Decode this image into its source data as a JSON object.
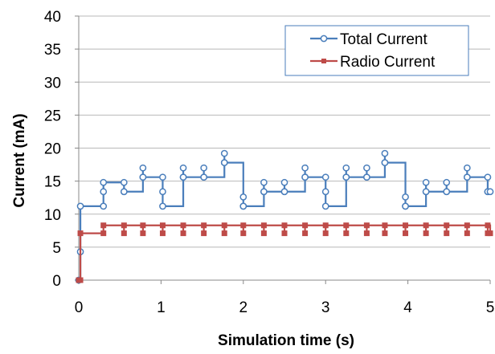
{
  "chart_data": {
    "type": "line",
    "title": "",
    "xlabel": "Simulation time (s)",
    "ylabel": "Current (mA)",
    "xlim": [
      0,
      5
    ],
    "ylim": [
      0,
      40
    ],
    "xticks": [
      0,
      1,
      2,
      3,
      4,
      5
    ],
    "yticks": [
      0,
      5,
      10,
      15,
      20,
      25,
      30,
      35,
      40
    ],
    "grid": "horizontal",
    "legend_position": "top-right",
    "step": true,
    "series": [
      {
        "name": "Total Current",
        "color": "#4a7ebb",
        "marker": "circle",
        "x": [
          0,
          0.02,
          0.02,
          0.3,
          0.3,
          0.3,
          0.55,
          0.55,
          0.55,
          0.78,
          0.78,
          0.78,
          1.02,
          1.02,
          1.02,
          1.27,
          1.27,
          1.27,
          1.52,
          1.52,
          1.52,
          1.77,
          1.77,
          1.77,
          2.0,
          2.0,
          2.0,
          2.25,
          2.25,
          2.25,
          2.5,
          2.5,
          2.5,
          2.75,
          2.75,
          2.75,
          3.0,
          3.0,
          3.0,
          3.25,
          3.25,
          3.25,
          3.5,
          3.5,
          3.5,
          3.72,
          3.72,
          3.72,
          3.97,
          3.97,
          3.97,
          4.22,
          4.22,
          4.22,
          4.47,
          4.47,
          4.47,
          4.72,
          4.72,
          4.72,
          4.97,
          4.97,
          4.97,
          5.0
        ],
        "y": [
          0,
          4.3,
          11.2,
          11.2,
          13.4,
          14.8,
          13.4,
          14.8,
          13.4,
          15.6,
          17.0,
          15.6,
          13.4,
          15.6,
          11.2,
          15.6,
          17.0,
          15.6,
          15.6,
          17.0,
          15.6,
          17.8,
          19.2,
          17.8,
          11.2,
          12.6,
          11.2,
          13.4,
          14.8,
          13.4,
          13.4,
          14.8,
          13.4,
          15.6,
          17.0,
          15.6,
          13.4,
          15.6,
          11.2,
          15.6,
          17.0,
          15.6,
          15.6,
          17.0,
          15.6,
          17.8,
          19.2,
          17.8,
          11.2,
          12.6,
          11.2,
          13.4,
          14.8,
          13.4,
          13.4,
          14.8,
          13.4,
          15.6,
          17.0,
          15.6,
          13.4,
          15.6,
          13.4,
          13.4
        ]
      },
      {
        "name": "Radio Current",
        "color": "#be4b48",
        "marker": "square",
        "x": [
          0,
          0.02,
          0.02,
          0.3,
          0.3,
          0.55,
          0.55,
          0.78,
          0.78,
          1.02,
          1.02,
          1.27,
          1.27,
          1.52,
          1.52,
          1.77,
          1.77,
          2.0,
          2.0,
          2.25,
          2.25,
          2.5,
          2.5,
          2.75,
          2.75,
          3.0,
          3.0,
          3.25,
          3.25,
          3.5,
          3.5,
          3.72,
          3.72,
          3.97,
          3.97,
          4.22,
          4.22,
          4.47,
          4.47,
          4.72,
          4.72,
          4.97,
          4.97,
          5.0
        ],
        "y": [
          0,
          0,
          7.1,
          7.1,
          8.3,
          7.1,
          8.3,
          7.1,
          8.3,
          7.1,
          8.3,
          7.1,
          8.3,
          7.1,
          8.3,
          7.1,
          8.3,
          7.1,
          8.3,
          7.1,
          8.3,
          7.1,
          8.3,
          7.1,
          8.3,
          7.1,
          8.3,
          7.1,
          8.3,
          7.1,
          8.3,
          7.1,
          8.3,
          7.1,
          8.3,
          7.1,
          8.3,
          7.1,
          8.3,
          7.1,
          8.3,
          7.1,
          8.3,
          7.1
        ]
      }
    ]
  }
}
